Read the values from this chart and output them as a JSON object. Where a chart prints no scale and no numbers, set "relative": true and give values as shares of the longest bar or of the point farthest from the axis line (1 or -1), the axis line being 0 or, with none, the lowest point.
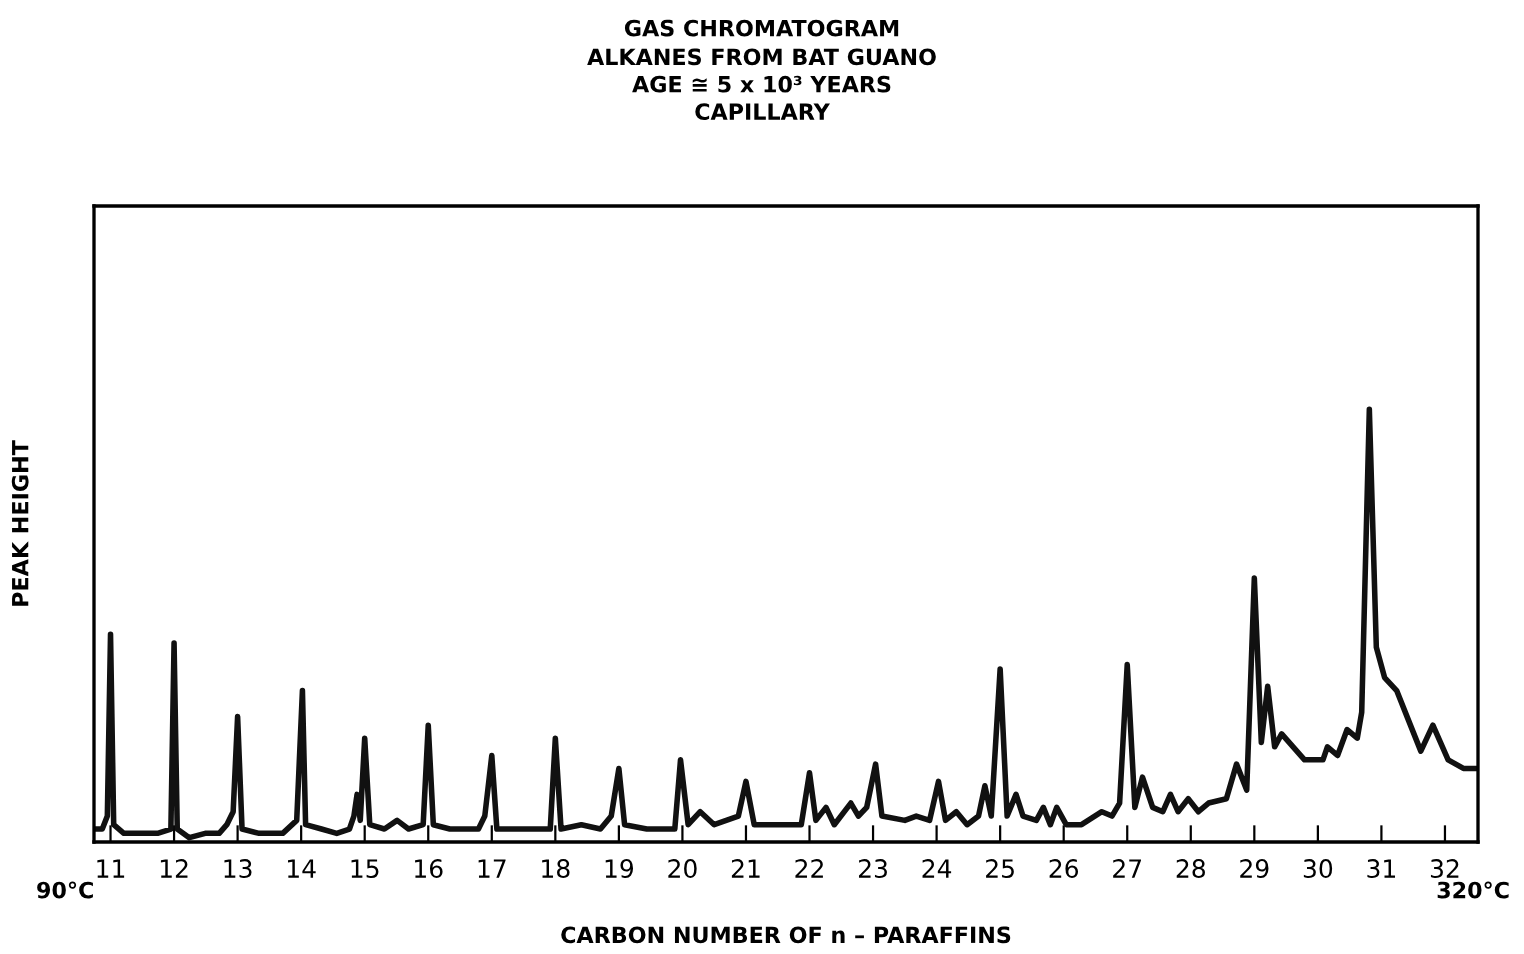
{
  "chart_data": {
    "type": "line",
    "relative": true,
    "title": "GAS CHROMATOGRAM",
    "subtitle": "ALKANES FROM BAT GUANO\nAGE ≅ 5 x 10³ YEARS\nCAPILLARY",
    "xlabel": "CARBON NUMBER OF n – PARAFFINS",
    "ylabel": "PEAK HEIGHT",
    "annotations": [
      "90°C",
      "320°C"
    ],
    "xlim": [
      10.74,
      32.52
    ],
    "xticks": [
      11,
      12,
      13,
      14,
      15,
      16,
      17,
      18,
      19,
      20,
      21,
      22,
      23,
      24,
      25,
      26,
      27,
      28,
      29,
      30,
      31,
      32
    ],
    "grid": false,
    "marker": "none",
    "line_style": "solid",
    "legend": false,
    "series": [
      {
        "color": "#111111",
        "x": [
          10.74,
          10.87,
          10.95,
          11.0,
          11.05,
          11.21,
          11.47,
          11.74,
          11.95,
          12.0,
          12.05,
          12.24,
          12.49,
          12.71,
          12.83,
          12.93,
          13.0,
          13.07,
          13.34,
          13.71,
          13.93,
          14.02,
          14.07,
          14.32,
          14.56,
          14.76,
          14.83,
          14.88,
          14.93,
          15.0,
          15.08,
          15.31,
          15.51,
          15.69,
          15.92,
          16.0,
          16.08,
          16.34,
          16.55,
          16.79,
          16.89,
          17.0,
          17.08,
          17.42,
          17.69,
          17.92,
          18.0,
          18.09,
          18.41,
          18.71,
          18.88,
          19.0,
          19.09,
          19.44,
          19.74,
          19.88,
          19.97,
          20.09,
          20.28,
          20.5,
          20.88,
          21.0,
          21.13,
          21.45,
          21.87,
          22.0,
          22.1,
          22.26,
          22.39,
          22.65,
          22.77,
          22.9,
          23.04,
          23.14,
          23.5,
          23.68,
          23.89,
          24.03,
          24.14,
          24.31,
          24.48,
          24.66,
          24.76,
          24.86,
          25.0,
          25.11,
          25.25,
          25.36,
          25.57,
          25.68,
          25.79,
          25.89,
          26.04,
          26.28,
          26.6,
          26.76,
          26.88,
          27.0,
          27.12,
          27.24,
          27.4,
          27.56,
          27.68,
          27.8,
          27.96,
          28.12,
          28.28,
          28.56,
          28.72,
          28.88,
          29.0,
          29.11,
          29.21,
          29.32,
          29.43,
          29.61,
          29.79,
          30.08,
          30.15,
          30.31,
          30.46,
          30.62,
          30.69,
          30.81,
          30.92,
          31.05,
          31.24,
          31.43,
          31.62,
          31.81,
          32.05,
          32.29,
          32.48
        ],
        "values": [
          0.03,
          0.03,
          0.06,
          0.48,
          0.04,
          0.02,
          0.02,
          0.02,
          0.03,
          0.46,
          0.03,
          0.01,
          0.02,
          0.02,
          0.04,
          0.07,
          0.29,
          0.03,
          0.02,
          0.02,
          0.05,
          0.35,
          0.04,
          0.03,
          0.02,
          0.03,
          0.06,
          0.11,
          0.05,
          0.24,
          0.04,
          0.03,
          0.05,
          0.03,
          0.04,
          0.27,
          0.04,
          0.03,
          0.03,
          0.03,
          0.06,
          0.2,
          0.03,
          0.03,
          0.03,
          0.03,
          0.24,
          0.03,
          0.04,
          0.03,
          0.06,
          0.17,
          0.04,
          0.03,
          0.03,
          0.03,
          0.19,
          0.04,
          0.07,
          0.04,
          0.06,
          0.14,
          0.04,
          0.04,
          0.04,
          0.16,
          0.05,
          0.08,
          0.04,
          0.09,
          0.06,
          0.08,
          0.18,
          0.06,
          0.05,
          0.06,
          0.05,
          0.14,
          0.05,
          0.07,
          0.04,
          0.06,
          0.13,
          0.06,
          0.4,
          0.06,
          0.11,
          0.06,
          0.05,
          0.08,
          0.04,
          0.08,
          0.04,
          0.04,
          0.07,
          0.06,
          0.09,
          0.41,
          0.08,
          0.15,
          0.08,
          0.07,
          0.11,
          0.07,
          0.1,
          0.07,
          0.09,
          0.1,
          0.18,
          0.12,
          0.61,
          0.23,
          0.36,
          0.22,
          0.25,
          0.22,
          0.19,
          0.19,
          0.22,
          0.2,
          0.26,
          0.24,
          0.3,
          1.0,
          0.45,
          0.38,
          0.35,
          0.28,
          0.21,
          0.27,
          0.19,
          0.17,
          0.17
        ]
      }
    ]
  }
}
